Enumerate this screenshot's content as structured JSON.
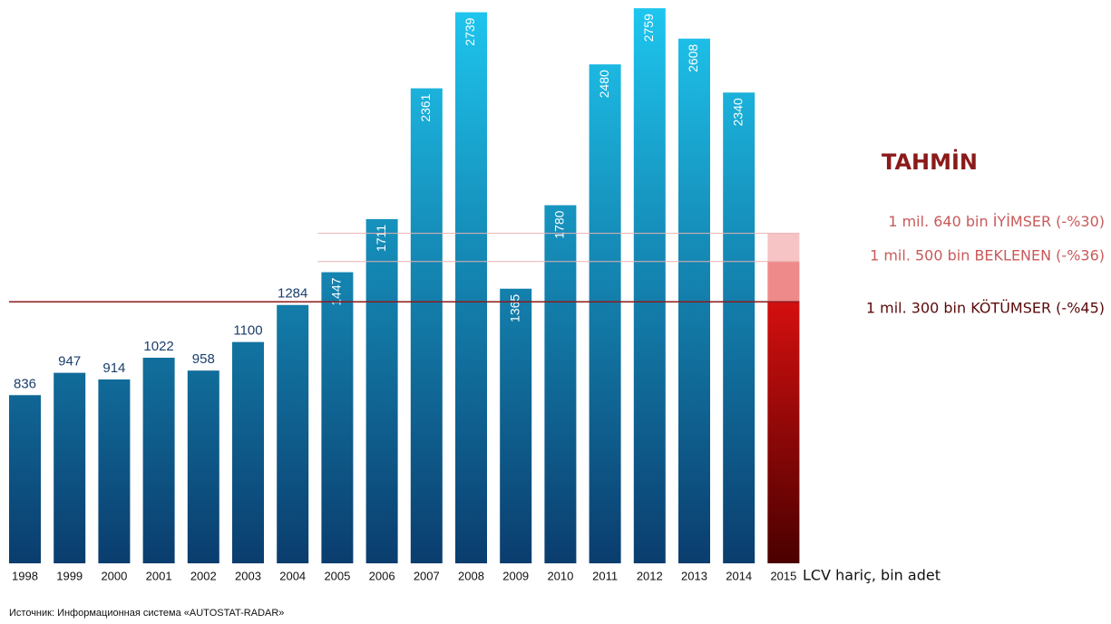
{
  "chart_data": {
    "type": "bar",
    "categories": [
      "1998",
      "1999",
      "2000",
      "2001",
      "2002",
      "2003",
      "2004",
      "2005",
      "2006",
      "2007",
      "2008",
      "2009",
      "2010",
      "2011",
      "2012",
      "2013",
      "2014",
      "2015"
    ],
    "values": [
      836,
      947,
      914,
      1022,
      958,
      1100,
      1284,
      1447,
      1711,
      2361,
      2739,
      1365,
      1780,
      2480,
      2759,
      2608,
      2340,
      null
    ],
    "color": "#1ec8f0",
    "color_bottom": "#0a3d6e",
    "ylim": [
      0,
      2800
    ],
    "forecast": {
      "title": "TAHMİN",
      "category": "2015",
      "scenarios": [
        {
          "name": "1 mil. 640 bin İYİMSER (-%30)",
          "value": 1640,
          "color": "#f6c4c4",
          "label_color": "#c85a5a"
        },
        {
          "name": "1 mil. 500 bin BEKLENEN (-%36)",
          "value": 1500,
          "color": "#ef8a8a",
          "label_color": "#c85a5a"
        },
        {
          "name": "1 mil. 300 bin KÖTÜMSER (-%45)",
          "value": 1300,
          "color": "#d40f0f",
          "label_color": "#5a0a0a"
        }
      ]
    },
    "unit_label": "LCV hariç, bin adet",
    "source": "Источник: Информационная система «AUTOSTAT-RADAR»"
  }
}
